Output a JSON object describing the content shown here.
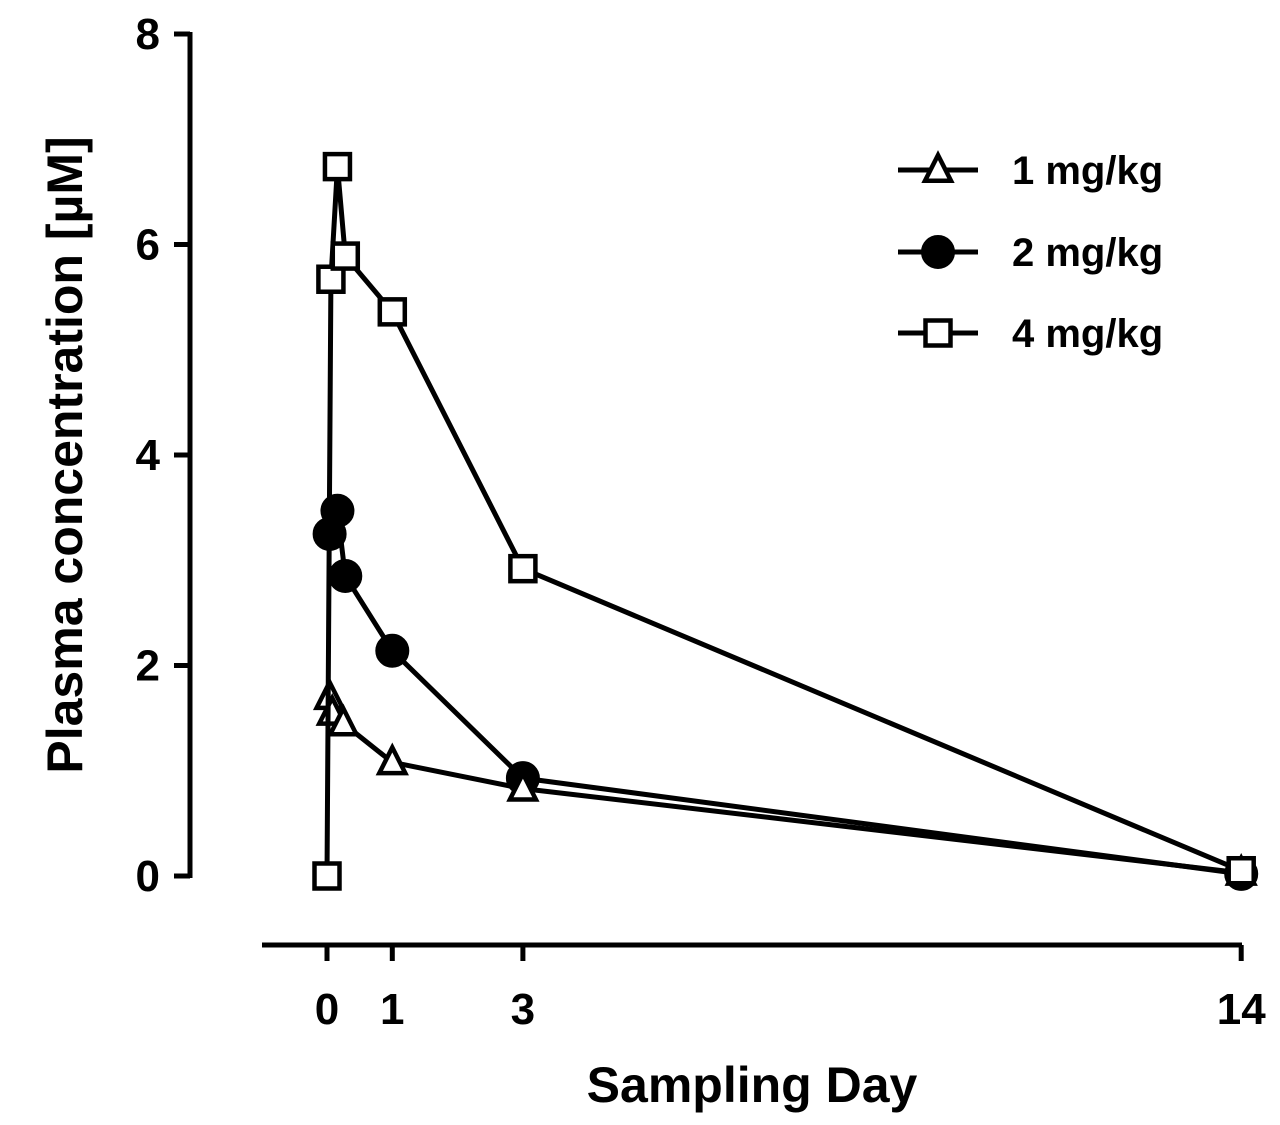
{
  "chart_data": {
    "type": "line",
    "title": "",
    "xlabel": "Sampling Day",
    "ylabel": "Plasma concentration [µM]",
    "xlim": [
      -1,
      14
    ],
    "ylim": [
      0,
      8
    ],
    "xticks": [
      0,
      1,
      3,
      14
    ],
    "yticks": [
      0,
      2,
      4,
      6,
      8
    ],
    "xtick_labels": [
      "0",
      "1",
      "3",
      "14"
    ],
    "ytick_labels": [
      "0",
      "2",
      "4",
      "6",
      "8"
    ],
    "grid": false,
    "legend_position": "top-right",
    "series": [
      {
        "name": "1 mg/kg",
        "marker": "open-triangle",
        "x": [
          0.04,
          0.08,
          0.25,
          1,
          3,
          14
        ],
        "y": [
          1.7,
          1.55,
          1.45,
          1.08,
          0.83,
          0.03
        ]
      },
      {
        "name": "2 mg/kg",
        "marker": "filled-circle",
        "x": [
          0.04,
          0.16,
          0.28,
          1,
          3,
          14
        ],
        "y": [
          3.25,
          3.47,
          2.85,
          2.14,
          0.93,
          0.02
        ]
      },
      {
        "name": "4 mg/kg",
        "marker": "open-square",
        "x": [
          0,
          0.06,
          0.16,
          0.28,
          1,
          3,
          14
        ],
        "y": [
          0,
          5.67,
          6.74,
          5.89,
          5.36,
          2.92,
          0.05
        ]
      }
    ]
  }
}
